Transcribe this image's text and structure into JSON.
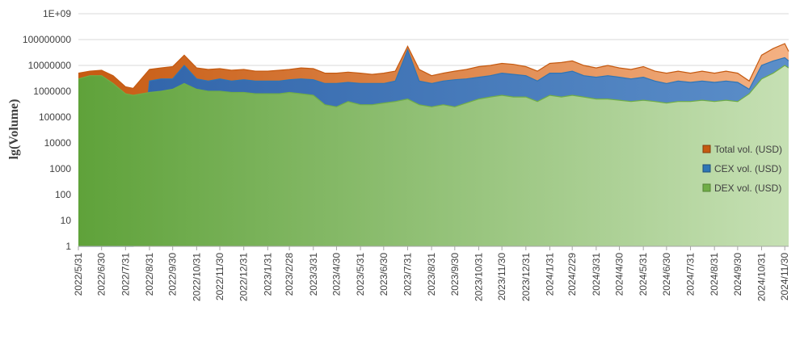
{
  "chart_data": {
    "type": "area",
    "title": "",
    "xlabel": "",
    "ylabel": "lg(Volume)",
    "y_scale": "log10",
    "ylim": [
      1,
      1000000000
    ],
    "y_ticks": [
      "1",
      "10",
      "100",
      "1000",
      "10000",
      "100000",
      "1000000",
      "10000000",
      "100000000",
      "1E+09"
    ],
    "x_ticks": [
      "2022/5/31",
      "2022/6/30",
      "2022/7/31",
      "2022/8/31",
      "2022/9/30",
      "2022/10/31",
      "2022/11/30",
      "2022/12/31",
      "2023/1/31",
      "2023/2/28",
      "2023/3/31",
      "2023/4/30",
      "2023/5/31",
      "2023/6/30",
      "2023/7/31",
      "2023/8/31",
      "2023/9/30",
      "2023/10/31",
      "2023/11/30",
      "2023/12/31",
      "2024/1/31",
      "2024/2/29",
      "2024/3/31",
      "2024/4/30",
      "2024/5/31",
      "2024/6/30",
      "2024/7/31",
      "2024/8/31",
      "2024/9/30",
      "2024/10/31",
      "2024/11/30"
    ],
    "grid": "horizontal",
    "legend_position": "right",
    "series": [
      {
        "name": "Total vol. (USD)",
        "color": "#c55a11",
        "fill": "#f4b183",
        "x": [
          "2022/5/31",
          "2022/6/15",
          "2022/6/30",
          "2022/7/15",
          "2022/7/31",
          "2022/8/10",
          "2022/8/31",
          "2022/9/15",
          "2022/9/30",
          "2022/10/15",
          "2022/10/31",
          "2022/11/15",
          "2022/11/30",
          "2022/12/15",
          "2022/12/31",
          "2023/1/15",
          "2023/1/31",
          "2023/2/15",
          "2023/2/28",
          "2023/3/15",
          "2023/3/31",
          "2023/4/15",
          "2023/4/30",
          "2023/5/15",
          "2023/5/31",
          "2023/6/15",
          "2023/6/30",
          "2023/7/15",
          "2023/7/31",
          "2023/8/15",
          "2023/8/31",
          "2023/9/15",
          "2023/9/30",
          "2023/10/15",
          "2023/10/31",
          "2023/11/15",
          "2023/11/30",
          "2023/12/15",
          "2023/12/31",
          "2024/1/15",
          "2024/1/31",
          "2024/2/15",
          "2024/2/29",
          "2024/3/15",
          "2024/3/31",
          "2024/4/15",
          "2024/4/30",
          "2024/5/15",
          "2024/5/31",
          "2024/6/15",
          "2024/6/30",
          "2024/7/15",
          "2024/7/31",
          "2024/8/15",
          "2024/8/31",
          "2024/9/15",
          "2024/9/30",
          "2024/10/15",
          "2024/10/31",
          "2024/11/15",
          "2024/11/30",
          "2024/12/5"
        ],
        "values": [
          5000000,
          6000000,
          6500000,
          4000000,
          1500000,
          1300000,
          7000000,
          8000000,
          9000000,
          25000000,
          8000000,
          7000000,
          7500000,
          6500000,
          7000000,
          6000000,
          6000000,
          6500000,
          7000000,
          8000000,
          7500000,
          5000000,
          5000000,
          5500000,
          5000000,
          4500000,
          5000000,
          6000000,
          55000000,
          7000000,
          4000000,
          5000000,
          6000000,
          7000000,
          9000000,
          10000000,
          12000000,
          11000000,
          9000000,
          6000000,
          12000000,
          13000000,
          15000000,
          10000000,
          8000000,
          10000000,
          8000000,
          7000000,
          9000000,
          6000000,
          5000000,
          6000000,
          5000000,
          6000000,
          5000000,
          6000000,
          5000000,
          2500000,
          25000000,
          45000000,
          70000000,
          35000000
        ]
      },
      {
        "name": "CEX vol. (USD)",
        "color": "#2e75b6",
        "fill": "#5b8ec9",
        "x": [
          "2022/5/31",
          "2022/6/15",
          "2022/6/30",
          "2022/7/15",
          "2022/7/31",
          "2022/8/10",
          "2022/8/31",
          "2022/9/15",
          "2022/9/30",
          "2022/10/15",
          "2022/10/31",
          "2022/11/15",
          "2022/11/30",
          "2022/12/15",
          "2022/12/31",
          "2023/1/15",
          "2023/1/31",
          "2023/2/15",
          "2023/2/28",
          "2023/3/15",
          "2023/3/31",
          "2023/4/15",
          "2023/4/30",
          "2023/5/15",
          "2023/5/31",
          "2023/6/15",
          "2023/6/30",
          "2023/7/15",
          "2023/7/31",
          "2023/8/15",
          "2023/8/31",
          "2023/9/15",
          "2023/9/30",
          "2023/10/15",
          "2023/10/31",
          "2023/11/15",
          "2023/11/30",
          "2023/12/15",
          "2023/12/31",
          "2024/1/15",
          "2024/1/31",
          "2024/2/15",
          "2024/2/29",
          "2024/3/15",
          "2024/3/31",
          "2024/4/15",
          "2024/4/30",
          "2024/5/15",
          "2024/5/31",
          "2024/6/15",
          "2024/6/30",
          "2024/7/15",
          "2024/7/31",
          "2024/8/15",
          "2024/8/31",
          "2024/9/15",
          "2024/9/30",
          "2024/10/15",
          "2024/10/31",
          "2024/11/15",
          "2024/11/30",
          "2024/12/5"
        ],
        "values": [
          1,
          1,
          1,
          1,
          1,
          1,
          2500000,
          3000000,
          3000000,
          10000000,
          3000000,
          2500000,
          3000000,
          2500000,
          2800000,
          2500000,
          2500000,
          2500000,
          2800000,
          3000000,
          2800000,
          2000000,
          2000000,
          2200000,
          2000000,
          2000000,
          2000000,
          2500000,
          40000000,
          2500000,
          2000000,
          2500000,
          2800000,
          3000000,
          3500000,
          4000000,
          5000000,
          4500000,
          4000000,
          2500000,
          5000000,
          5000000,
          6000000,
          4000000,
          3500000,
          4000000,
          3500000,
          3000000,
          3500000,
          2500000,
          2000000,
          2500000,
          2200000,
          2500000,
          2200000,
          2500000,
          2200000,
          1200000,
          10000000,
          15000000,
          20000000,
          15000000
        ]
      },
      {
        "name": "DEX vol. (USD)",
        "color": "#70ad47",
        "fill": "#a9d18e",
        "x": [
          "2022/5/31",
          "2022/6/15",
          "2022/6/30",
          "2022/7/15",
          "2022/7/31",
          "2022/8/10",
          "2022/8/31",
          "2022/9/15",
          "2022/9/30",
          "2022/10/15",
          "2022/10/31",
          "2022/11/15",
          "2022/11/30",
          "2022/12/15",
          "2022/12/31",
          "2023/1/15",
          "2023/1/31",
          "2023/2/15",
          "2023/2/28",
          "2023/3/15",
          "2023/3/31",
          "2023/4/15",
          "2023/4/30",
          "2023/5/15",
          "2023/5/31",
          "2023/6/15",
          "2023/6/30",
          "2023/7/15",
          "2023/7/31",
          "2023/8/15",
          "2023/8/31",
          "2023/9/15",
          "2023/9/30",
          "2023/10/15",
          "2023/10/31",
          "2023/11/15",
          "2023/11/30",
          "2023/12/15",
          "2023/12/31",
          "2024/1/15",
          "2024/1/31",
          "2024/2/15",
          "2024/2/29",
          "2024/3/15",
          "2024/3/31",
          "2024/4/15",
          "2024/4/30",
          "2024/5/15",
          "2024/5/31",
          "2024/6/15",
          "2024/6/30",
          "2024/7/15",
          "2024/7/31",
          "2024/8/15",
          "2024/8/31",
          "2024/9/15",
          "2024/9/30",
          "2024/10/15",
          "2024/10/31",
          "2024/11/15",
          "2024/11/30",
          "2024/12/5"
        ],
        "values": [
          3000000,
          4000000,
          4000000,
          2000000,
          800000,
          700000,
          900000,
          1000000,
          1200000,
          2000000,
          1200000,
          1000000,
          1000000,
          900000,
          900000,
          800000,
          800000,
          800000,
          900000,
          800000,
          700000,
          300000,
          250000,
          400000,
          300000,
          300000,
          350000,
          400000,
          500000,
          300000,
          250000,
          300000,
          250000,
          350000,
          500000,
          600000,
          700000,
          600000,
          600000,
          400000,
          700000,
          600000,
          700000,
          600000,
          500000,
          500000,
          450000,
          400000,
          450000,
          400000,
          350000,
          400000,
          400000,
          450000,
          400000,
          450000,
          400000,
          800000,
          3000000,
          5000000,
          10000000,
          8000000
        ]
      }
    ]
  }
}
